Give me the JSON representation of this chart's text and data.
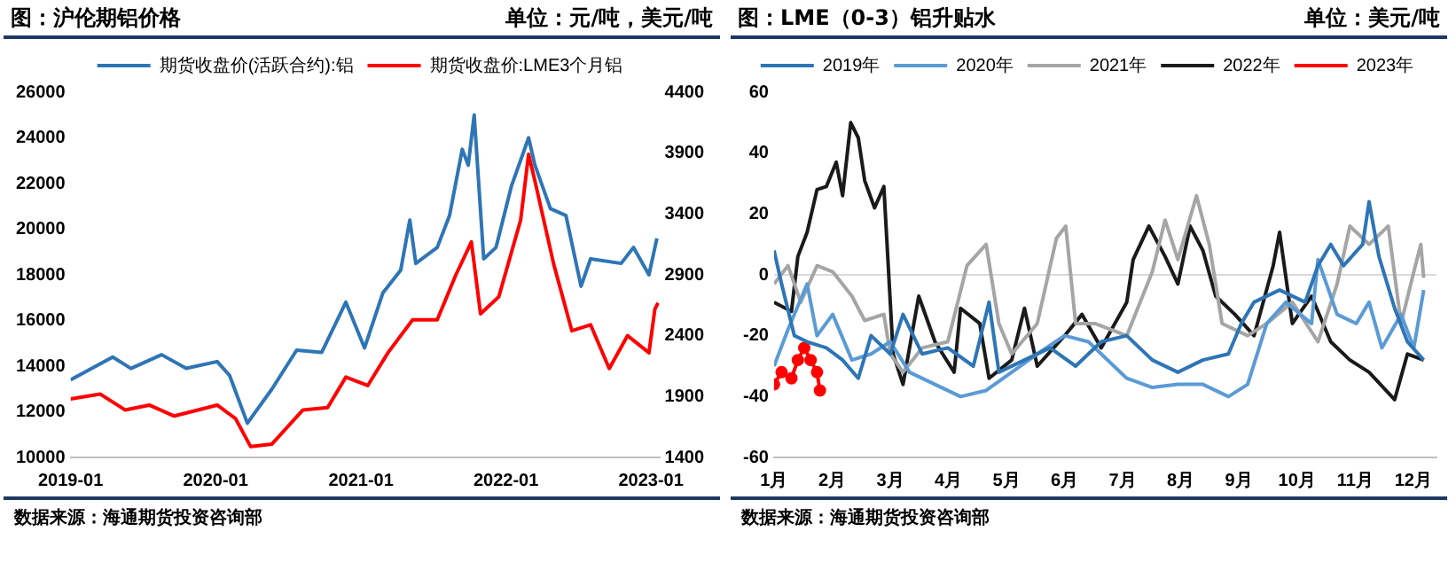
{
  "chart_data": [
    {
      "type": "line",
      "title": "图：沪伦期铝价格",
      "subtitle": "单位：元/吨，美元/吨",
      "legend": "top",
      "marker": "none",
      "xlim": [
        "2019-01-01",
        "2023-01-22"
      ],
      "xticks": [
        "2019-01",
        "2020-01",
        "2021-01",
        "2022-01",
        "2023-01"
      ],
      "ylim": [
        10000,
        26000
      ],
      "yticks": [
        10000,
        12000,
        14000,
        16000,
        18000,
        20000,
        22000,
        24000,
        26000
      ],
      "y2lim": [
        1400,
        4400
      ],
      "y2ticks": [
        1400,
        1900,
        2400,
        2900,
        3400,
        3900,
        4400
      ],
      "series": [
        {
          "name": "期货收盘价(活跃合约):铝",
          "color": "#2e75b6",
          "x": [
            "2019-01-01",
            "2019-04-17",
            "2019-06-02",
            "2019-08-18",
            "2019-10-19",
            "2020-01-05",
            "2020-02-05",
            "2020-03-21",
            "2020-05-22",
            "2020-07-23",
            "2020-09-24",
            "2020-11-24",
            "2021-01-10",
            "2021-02-25",
            "2021-04-11",
            "2021-05-04",
            "2021-05-19",
            "2021-07-12",
            "2021-08-12",
            "2021-09-13",
            "2021-09-28",
            "2021-10-13",
            "2021-11-06",
            "2021-12-07",
            "2022-01-15",
            "2022-02-27",
            "2022-03-15",
            "2022-04-23",
            "2022-06-01",
            "2022-07-09",
            "2022-08-02",
            "2022-10-18",
            "2022-11-18",
            "2022-12-27",
            "2023-01-16"
          ],
          "values": [
            13400,
            14400,
            13900,
            14500,
            13900,
            14200,
            13600,
            11500,
            13000,
            14700,
            14600,
            16800,
            14800,
            17200,
            18200,
            20400,
            18500,
            19200,
            20600,
            23500,
            22800,
            25000,
            18700,
            19200,
            21900,
            24000,
            22800,
            20900,
            20600,
            17500,
            18700,
            18500,
            19200,
            18000,
            19600
          ]
        },
        {
          "name": "期货收盘价:LME3个月铝",
          "color": "#ff0000",
          "axis": "y2",
          "x": [
            "2019-01-01",
            "2019-03-17",
            "2019-05-18",
            "2019-07-18",
            "2019-09-19",
            "2020-01-05",
            "2020-02-20",
            "2020-03-29",
            "2020-05-22",
            "2020-08-08",
            "2020-10-09",
            "2020-11-24",
            "2021-01-18",
            "2021-03-10",
            "2021-05-11",
            "2021-07-12",
            "2021-08-28",
            "2021-10-06",
            "2021-10-29",
            "2021-12-14",
            "2022-02-07",
            "2022-02-27",
            "2022-03-15",
            "2022-05-01",
            "2022-06-16",
            "2022-08-02",
            "2022-09-18",
            "2022-11-03",
            "2022-12-27",
            "2023-01-11",
            "2023-01-19"
          ],
          "values": [
            1880,
            1920,
            1790,
            1830,
            1740,
            1830,
            1720,
            1490,
            1510,
            1790,
            1810,
            2060,
            1990,
            2260,
            2530,
            2530,
            2900,
            3170,
            2580,
            2720,
            3350,
            3890,
            3670,
            2990,
            2440,
            2490,
            2130,
            2400,
            2260,
            2620,
            2670
          ]
        }
      ],
      "annotations": [
        "数据来源：海通期货投资咨询部"
      ]
    },
    {
      "type": "line",
      "title": "图：LME（0-3）铝升贴水",
      "subtitle": "单位：美元/吨",
      "legend": "top",
      "marker": "none",
      "xlim": [
        1,
        12.4
      ],
      "xticks": [
        {
          "value": 1,
          "label": "1月"
        },
        {
          "value": 2,
          "label": "2月"
        },
        {
          "value": 3,
          "label": "3月"
        },
        {
          "value": 4,
          "label": "4月"
        },
        {
          "value": 5,
          "label": "5月"
        },
        {
          "value": 6,
          "label": "6月"
        },
        {
          "value": 7,
          "label": "7月"
        },
        {
          "value": 8,
          "label": "8月"
        },
        {
          "value": 9,
          "label": "9月"
        },
        {
          "value": 10,
          "label": "10月"
        },
        {
          "value": 11,
          "label": "11月"
        },
        {
          "value": 12,
          "label": "12月"
        }
      ],
      "ylim": [
        -60,
        60
      ],
      "yticks": [
        -60,
        -40,
        -20,
        0,
        20,
        40,
        60
      ],
      "ref_lines": [
        {
          "axis": "y",
          "value": 0,
          "color": "#d9d9d9"
        }
      ],
      "series": [
        {
          "name": "2019年",
          "color": "#2e75b6",
          "x": [
            1.0,
            1.13,
            1.35,
            1.57,
            1.9,
            2.18,
            2.45,
            2.67,
            3.0,
            3.22,
            3.55,
            3.99,
            4.43,
            4.7,
            4.87,
            5.31,
            5.75,
            6.19,
            6.63,
            7.07,
            7.51,
            7.95,
            8.38,
            8.82,
            9.04,
            9.26,
            9.7,
            10.14,
            10.36,
            10.58,
            10.8,
            11.13,
            11.24,
            11.41,
            11.68,
            11.9,
            12.18
          ],
          "values": [
            8,
            -3,
            -20,
            -22,
            -24,
            -28,
            -34,
            -20,
            -26,
            -13,
            -26,
            -24,
            -30,
            -9,
            -32,
            -28,
            -24,
            -30,
            -22,
            -20,
            -28,
            -32,
            -28,
            -26,
            -16,
            -9,
            -5,
            -9,
            3,
            10,
            3,
            10,
            24,
            6,
            -11,
            -22,
            -28
          ]
        },
        {
          "name": "2020年",
          "color": "#5b9bd5",
          "x": [
            1.0,
            1.24,
            1.57,
            1.74,
            2.01,
            2.34,
            2.67,
            3.0,
            3.33,
            3.77,
            4.21,
            4.65,
            5.09,
            5.53,
            6.0,
            6.41,
            6.63,
            7.07,
            7.51,
            7.95,
            8.38,
            8.82,
            9.15,
            9.48,
            9.81,
            10.25,
            10.36,
            10.69,
            11.02,
            11.24,
            11.46,
            11.79,
            12.01,
            12.18
          ],
          "values": [
            -30,
            -18,
            -3,
            -20,
            -13,
            -28,
            -26,
            -22,
            -32,
            -36,
            -40,
            -38,
            -32,
            -26,
            -20,
            -22,
            -26,
            -34,
            -37,
            -36,
            -36,
            -40,
            -36,
            -16,
            -9,
            -16,
            5,
            -13,
            -16,
            -9,
            -24,
            -13,
            -24,
            -5
          ]
        },
        {
          "name": "2021年",
          "color": "#a5a5a5",
          "x": [
            1.0,
            1.24,
            1.46,
            1.74,
            2.01,
            2.34,
            2.56,
            2.89,
            3.0,
            3.22,
            3.55,
            3.99,
            4.32,
            4.65,
            4.87,
            5.09,
            5.53,
            5.86,
            6.02,
            6.19,
            6.52,
            7.07,
            7.51,
            7.73,
            7.95,
            8.27,
            8.49,
            8.71,
            9.15,
            9.48,
            9.92,
            10.36,
            10.69,
            10.91,
            11.24,
            11.57,
            11.79,
            12.01,
            12.13,
            12.18
          ],
          "values": [
            -3,
            3,
            -9,
            3,
            1,
            -7,
            -15,
            -13,
            -26,
            -32,
            -24,
            -22,
            3,
            10,
            -16,
            -26,
            -16,
            12,
            16,
            -16,
            -16,
            -20,
            1,
            18,
            5,
            26,
            10,
            -16,
            -20,
            -16,
            -9,
            -22,
            -3,
            16,
            10,
            16,
            -16,
            1,
            10,
            -1
          ]
        },
        {
          "name": "2022年",
          "color": "#1a1a1a",
          "x": [
            1.0,
            1.3,
            1.41,
            1.57,
            1.74,
            1.9,
            2.07,
            2.18,
            2.32,
            2.45,
            2.56,
            2.73,
            2.89,
            3.05,
            3.22,
            3.49,
            3.77,
            4.1,
            4.21,
            4.54,
            4.7,
            5.09,
            5.31,
            5.53,
            6.0,
            6.3,
            6.63,
            7.07,
            7.18,
            7.45,
            7.73,
            7.95,
            8.16,
            8.38,
            8.6,
            8.93,
            9.26,
            9.59,
            9.7,
            9.92,
            10.25,
            10.58,
            10.91,
            11.24,
            11.68,
            11.9,
            12.18
          ],
          "values": [
            -9,
            -12,
            6,
            14,
            28,
            29,
            37,
            26,
            50,
            45,
            31,
            22,
            29,
            -26,
            -36,
            -7,
            -22,
            -32,
            -11,
            -16,
            -34,
            -28,
            -11,
            -30,
            -20,
            -13,
            -24,
            -9,
            5,
            16,
            6,
            -3,
            16,
            8,
            -7,
            -13,
            -20,
            3,
            14,
            -16,
            -7,
            -22,
            -28,
            -32,
            -41,
            -26,
            -28
          ]
        },
        {
          "name": "2023年",
          "color": "#ff0000",
          "marker": "circle",
          "x": [
            1.0,
            1.13,
            1.3,
            1.41,
            1.52,
            1.63,
            1.74,
            1.79
          ],
          "values": [
            -36,
            -32,
            -34,
            -28,
            -24,
            -28,
            -32,
            -38
          ]
        }
      ],
      "annotations": [
        "数据来源：海通期货投资咨询部"
      ]
    }
  ]
}
